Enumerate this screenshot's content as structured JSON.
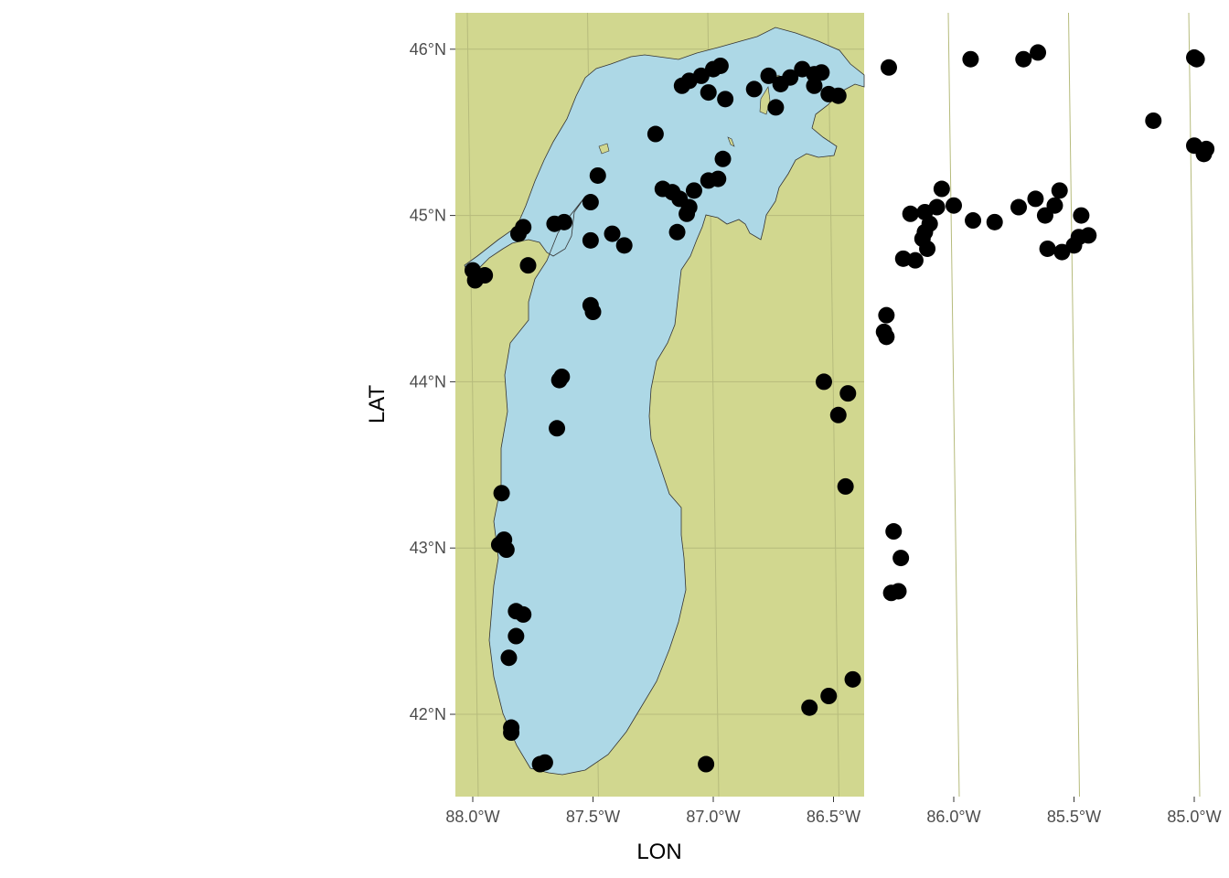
{
  "map": {
    "land_color": "#d1d78f",
    "water_color": "#add8e6",
    "grid_color": "#b6bb7c",
    "point_color": "#000000",
    "x_axis_title": "LON",
    "y_axis_title": "LAT",
    "lon_ticks": [
      "88.0°W",
      "87.5°W",
      "87.0°W",
      "86.5°W",
      "86.0°W",
      "85.5°W",
      "85.0°W"
    ],
    "lat_ticks": [
      "42°N",
      "43°N",
      "44°N",
      "45°N",
      "46°N"
    ]
  },
  "chart_data": {
    "type": "scatter",
    "title": "",
    "xlabel": "LON",
    "ylabel": "LAT",
    "xlim": [
      -88.15,
      -84.75
    ],
    "ylim": [
      41.5,
      46.22
    ],
    "grid": true,
    "legend": "none",
    "lon_ticks": [
      -88.0,
      -87.5,
      -87.0,
      -86.5,
      -86.0,
      -85.5,
      -85.0
    ],
    "lat_ticks": [
      42,
      43,
      44,
      45,
      46
    ],
    "series": [
      {
        "values": [
          [
            -87.72,
            41.7
          ],
          [
            -87.7,
            41.71
          ],
          [
            -87.03,
            41.7
          ],
          [
            -87.84,
            41.92
          ],
          [
            -87.84,
            41.89
          ],
          [
            -86.6,
            42.04
          ],
          [
            -86.52,
            42.11
          ],
          [
            -86.42,
            42.21
          ],
          [
            -87.85,
            42.34
          ],
          [
            -87.82,
            42.47
          ],
          [
            -87.82,
            42.62
          ],
          [
            -87.79,
            42.6
          ],
          [
            -86.23,
            42.74
          ],
          [
            -86.26,
            42.73
          ],
          [
            -86.22,
            42.94
          ],
          [
            -87.86,
            42.99
          ],
          [
            -87.87,
            43.05
          ],
          [
            -87.89,
            43.02
          ],
          [
            -86.25,
            43.1
          ],
          [
            -87.88,
            43.33
          ],
          [
            -86.45,
            43.37
          ],
          [
            -87.65,
            43.72
          ],
          [
            -86.48,
            43.8
          ],
          [
            -86.44,
            43.93
          ],
          [
            -86.54,
            44.0
          ],
          [
            -87.63,
            44.03
          ],
          [
            -87.64,
            44.01
          ],
          [
            -86.29,
            44.3
          ],
          [
            -86.28,
            44.27
          ],
          [
            -86.28,
            44.4
          ],
          [
            -87.5,
            44.42
          ],
          [
            -87.51,
            44.46
          ],
          [
            -87.99,
            44.61
          ],
          [
            -88.0,
            44.67
          ],
          [
            -87.95,
            44.64
          ],
          [
            -87.77,
            44.7
          ],
          [
            -86.16,
            44.73
          ],
          [
            -86.21,
            44.74
          ],
          [
            -87.51,
            44.85
          ],
          [
            -87.37,
            44.82
          ],
          [
            -87.42,
            44.89
          ],
          [
            -87.15,
            44.9
          ],
          [
            -87.81,
            44.89
          ],
          [
            -87.79,
            44.93
          ],
          [
            -87.66,
            44.95
          ],
          [
            -87.62,
            44.96
          ],
          [
            -87.51,
            45.08
          ],
          [
            -87.48,
            45.24
          ],
          [
            -87.11,
            45.01
          ],
          [
            -87.1,
            45.05
          ],
          [
            -87.14,
            45.1
          ],
          [
            -87.21,
            45.16
          ],
          [
            -87.17,
            45.14
          ],
          [
            -87.08,
            45.15
          ],
          [
            -87.02,
            45.21
          ],
          [
            -86.98,
            45.22
          ],
          [
            -86.96,
            45.34
          ],
          [
            -87.24,
            45.49
          ],
          [
            -86.1,
            44.95
          ],
          [
            -86.13,
            44.86
          ],
          [
            -86.11,
            44.8
          ],
          [
            -86.12,
            44.9
          ],
          [
            -86.07,
            45.05
          ],
          [
            -86.12,
            45.02
          ],
          [
            -86.18,
            45.01
          ],
          [
            -86.0,
            45.06
          ],
          [
            -85.92,
            44.97
          ],
          [
            -85.83,
            44.96
          ],
          [
            -86.05,
            45.16
          ],
          [
            -85.73,
            45.05
          ],
          [
            -85.66,
            45.1
          ],
          [
            -85.62,
            45.0
          ],
          [
            -85.56,
            45.15
          ],
          [
            -85.58,
            45.06
          ],
          [
            -85.47,
            45.0
          ],
          [
            -85.61,
            44.8
          ],
          [
            -85.55,
            44.78
          ],
          [
            -85.5,
            44.82
          ],
          [
            -85.48,
            44.87
          ],
          [
            -85.44,
            44.88
          ],
          [
            -87.13,
            45.78
          ],
          [
            -87.1,
            45.81
          ],
          [
            -87.05,
            45.84
          ],
          [
            -87.0,
            45.88
          ],
          [
            -86.97,
            45.9
          ],
          [
            -87.02,
            45.74
          ],
          [
            -86.95,
            45.7
          ],
          [
            -86.83,
            45.76
          ],
          [
            -86.77,
            45.84
          ],
          [
            -86.72,
            45.79
          ],
          [
            -86.74,
            45.65
          ],
          [
            -86.68,
            45.83
          ],
          [
            -86.63,
            45.88
          ],
          [
            -86.58,
            45.85
          ],
          [
            -86.55,
            45.86
          ],
          [
            -86.58,
            45.78
          ],
          [
            -86.52,
            45.73
          ],
          [
            -86.48,
            45.72
          ],
          [
            -86.27,
            45.89
          ],
          [
            -85.93,
            45.94
          ],
          [
            -85.71,
            45.94
          ],
          [
            -85.65,
            45.98
          ],
          [
            -85.17,
            45.57
          ],
          [
            -85.0,
            45.95
          ],
          [
            -84.99,
            45.94
          ],
          [
            -85.0,
            45.42
          ],
          [
            -84.95,
            45.4
          ],
          [
            -84.96,
            45.37
          ]
        ]
      }
    ]
  }
}
